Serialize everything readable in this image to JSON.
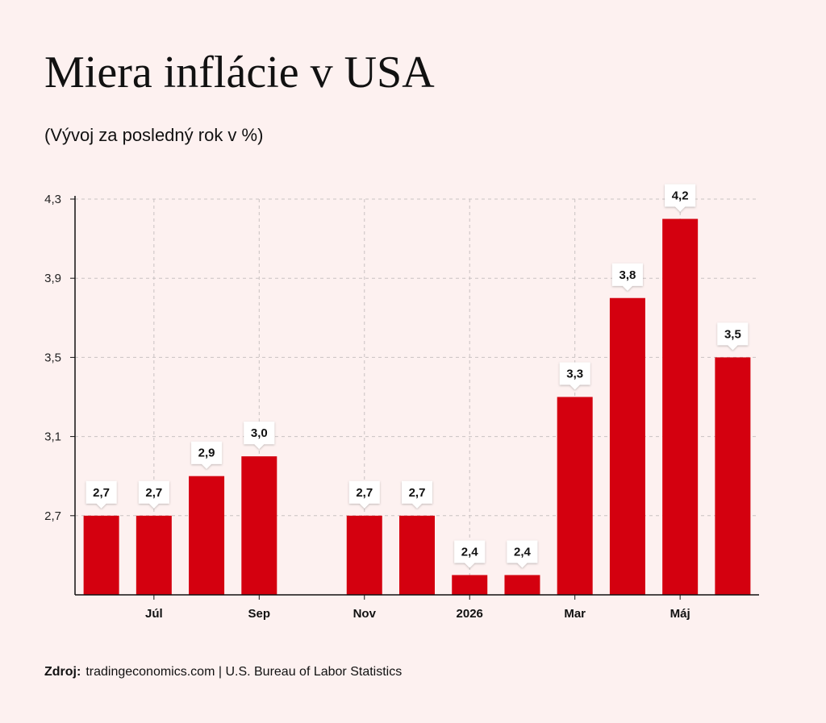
{
  "header": {
    "title": "Miera inflácie v USA",
    "subtitle": "(Vývoj za posledný rok v %)"
  },
  "footer": {
    "source_label": "Zdroj:",
    "source_text": "tradingeconomics.com | U.S. Bureau of Labor Statistics"
  },
  "colors": {
    "bar": "#d4000f",
    "background": "#fdf1f0",
    "grid": "#c9c2c2",
    "axis": "#111111"
  },
  "chart_data": {
    "type": "bar",
    "title": "Miera inflácie v USA",
    "subtitle": "(Vývoj za posledný rok v %)",
    "xlabel": "",
    "ylabel": "",
    "ylim": [
      2.3,
      4.3
    ],
    "yticks": [
      "2,7",
      "3,1",
      "3,5",
      "3,9",
      "4,3"
    ],
    "ytick_values": [
      2.7,
      3.1,
      3.5,
      3.9,
      4.3
    ],
    "grid": true,
    "legend": "none",
    "x_tick_labels": [
      "Júl",
      "Sep",
      "Nov",
      "2026",
      "Mar",
      "Máj"
    ],
    "x_tick_slots": [
      1,
      3,
      5,
      7,
      9,
      11
    ],
    "slots": 13,
    "values": [
      2.7,
      2.7,
      2.9,
      3.0,
      null,
      2.7,
      2.7,
      2.4,
      2.4,
      3.3,
      3.8,
      4.2,
      3.5
    ],
    "value_labels": [
      "2,7",
      "2,7",
      "2,9",
      "3,0",
      "",
      "2,7",
      "2,7",
      "2,4",
      "2,4",
      "3,3",
      "3,8",
      "4,2",
      "3,5"
    ]
  }
}
